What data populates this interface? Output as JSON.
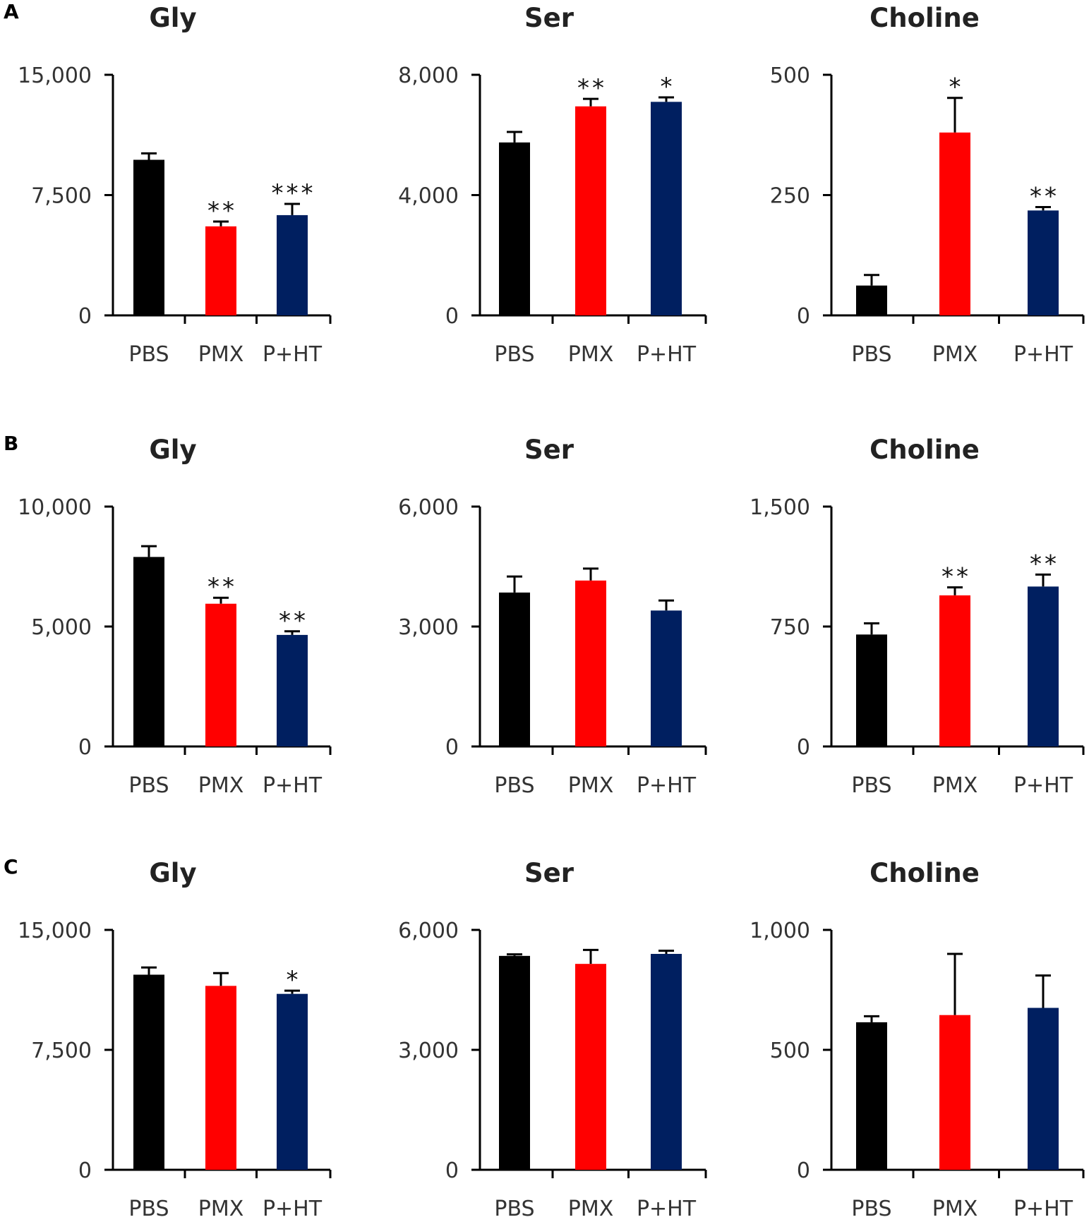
{
  "figure": {
    "categories": [
      "PBS",
      "PMX",
      "P+HT"
    ],
    "colors": {
      "PBS": "#000000",
      "PMX": "#ff0000",
      "P+HT": "#001f60",
      "axis": "#000000"
    }
  },
  "chart_data": [
    {
      "type": "bar",
      "row": "A",
      "title": "Gly",
      "categories": [
        "PBS",
        "PMX",
        "P+HT"
      ],
      "values": [
        9700,
        5550,
        6250
      ],
      "errors": [
        400,
        300,
        700
      ],
      "significance": [
        "",
        "**",
        "***"
      ],
      "ylim": [
        0,
        15000
      ],
      "yticks": [
        "0",
        "7,500",
        "15,000"
      ]
    },
    {
      "type": "bar",
      "row": "A",
      "title": "Ser",
      "categories": [
        "PBS",
        "PMX",
        "P+HT"
      ],
      "values": [
        5750,
        6950,
        7100
      ],
      "errors": [
        350,
        250,
        150
      ],
      "significance": [
        "",
        "**",
        "*"
      ],
      "ylim": [
        0,
        8000
      ],
      "yticks": [
        "0",
        "4,000",
        "8,000"
      ]
    },
    {
      "type": "bar",
      "row": "A",
      "title": "Choline",
      "categories": [
        "PBS",
        "PMX",
        "P+HT"
      ],
      "values": [
        62,
        380,
        218
      ],
      "errors": [
        22,
        72,
        7
      ],
      "significance": [
        "",
        "*",
        "**"
      ],
      "ylim": [
        0,
        500
      ],
      "yticks": [
        "0",
        "250",
        "500"
      ]
    },
    {
      "type": "bar",
      "row": "B",
      "title": "Gly",
      "categories": [
        "PBS",
        "PMX",
        "P+HT"
      ],
      "values": [
        7900,
        5950,
        4650
      ],
      "errors": [
        450,
        250,
        150
      ],
      "significance": [
        "",
        "**",
        "**"
      ],
      "ylim": [
        0,
        10000
      ],
      "yticks": [
        "0",
        "5,000",
        "10,000"
      ]
    },
    {
      "type": "bar",
      "row": "B",
      "title": "Ser",
      "categories": [
        "PBS",
        "PMX",
        "P+HT"
      ],
      "values": [
        3850,
        4150,
        3400
      ],
      "errors": [
        400,
        300,
        250
      ],
      "significance": [
        "",
        "",
        ""
      ],
      "ylim": [
        0,
        6000
      ],
      "yticks": [
        "0",
        "3,000",
        "6,000"
      ]
    },
    {
      "type": "bar",
      "row": "B",
      "title": "Choline",
      "categories": [
        "PBS",
        "PMX",
        "P+HT"
      ],
      "values": [
        700,
        945,
        1000
      ],
      "errors": [
        70,
        50,
        75
      ],
      "significance": [
        "",
        "**",
        "**"
      ],
      "ylim": [
        0,
        1500
      ],
      "yticks": [
        "0",
        "750",
        "1,500"
      ]
    },
    {
      "type": "bar",
      "row": "C",
      "title": "Gly",
      "categories": [
        "PBS",
        "PMX",
        "P+HT"
      ],
      "values": [
        12200,
        11500,
        11000
      ],
      "errors": [
        450,
        800,
        200
      ],
      "significance": [
        "",
        "",
        "*"
      ],
      "ylim": [
        0,
        15000
      ],
      "yticks": [
        "0",
        "7,500",
        "15,000"
      ]
    },
    {
      "type": "bar",
      "row": "C",
      "title": "Ser",
      "categories": [
        "PBS",
        "PMX",
        "P+HT"
      ],
      "values": [
        5350,
        5150,
        5400
      ],
      "errors": [
        40,
        350,
        80
      ],
      "significance": [
        "",
        "",
        ""
      ],
      "ylim": [
        0,
        6000
      ],
      "yticks": [
        "0",
        "3,000",
        "6,000"
      ]
    },
    {
      "type": "bar",
      "row": "C",
      "title": "Choline",
      "categories": [
        "PBS",
        "PMX",
        "P+HT"
      ],
      "values": [
        615,
        645,
        675
      ],
      "errors": [
        25,
        255,
        135
      ],
      "significance": [
        "",
        "",
        ""
      ],
      "ylim": [
        0,
        1000
      ],
      "yticks": [
        "0",
        "500",
        "1,000"
      ]
    }
  ]
}
